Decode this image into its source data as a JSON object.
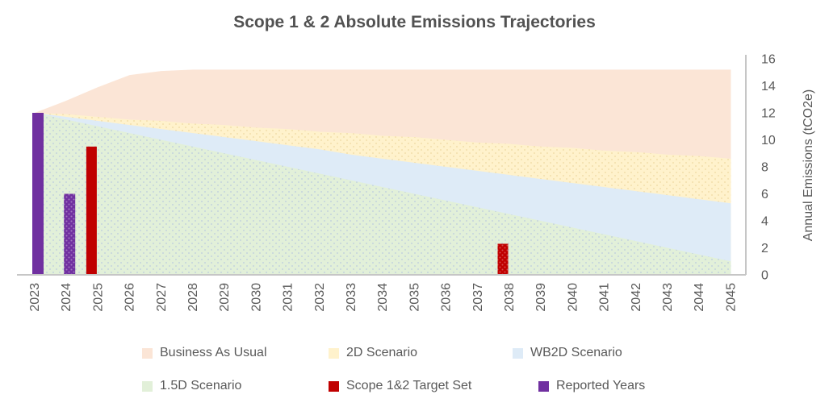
{
  "title": "Scope 1 & 2 Absolute Emissions Trajectories",
  "y_axis": {
    "title": "Annual Emissions (tCO2e)",
    "ticks": [
      0,
      2,
      4,
      6,
      8,
      10,
      12,
      14,
      16
    ],
    "min": 0,
    "max": 16
  },
  "x_axis": {
    "first_year": "2023",
    "last_year": "2045"
  },
  "legend": {
    "items": [
      {
        "label": "Business As Usual",
        "color": "#FBE5D6"
      },
      {
        "label": "2D Scenario",
        "color": "#FFF2CC"
      },
      {
        "label": "WB2D Scenario",
        "color": "#DEEBF7"
      },
      {
        "label": "1.5D Scenario",
        "color": "#E2F0D9"
      },
      {
        "label": "Scope 1&2 Target Set",
        "color": "#C00000"
      },
      {
        "label": "Reported Years",
        "color": "#7030A0"
      }
    ]
  },
  "colors": {
    "axis_line": "#C6C6C6",
    "tick_text": "#595959",
    "title_text": "#525252"
  },
  "chart_data": {
    "type": "area",
    "subtype": "overlapping areas with clustered columns",
    "title": "Scope 1 & 2 Absolute Emissions Trajectories",
    "xlabel": "",
    "ylabel": "Annual Emissions (tCO2e)",
    "ylim": [
      0,
      16
    ],
    "grid": false,
    "legend_position": "bottom",
    "categories": [
      2023,
      2024,
      2025,
      2026,
      2027,
      2028,
      2029,
      2030,
      2031,
      2032,
      2033,
      2034,
      2035,
      2036,
      2037,
      2038,
      2039,
      2040,
      2041,
      2042,
      2043,
      2044,
      2045
    ],
    "area_series": [
      {
        "name": "Business As Usual",
        "color": "#FBE5D6",
        "pattern": "none",
        "values": [
          12,
          12.9,
          13.9,
          14.8,
          15.1,
          15.2,
          15.2,
          15.2,
          15.2,
          15.2,
          15.2,
          15.2,
          15.2,
          15.2,
          15.2,
          15.2,
          15.2,
          15.2,
          15.2,
          15.2,
          15.2,
          15.2,
          15.2
        ]
      },
      {
        "name": "2D Scenario",
        "color": "#FFF2CC",
        "pattern": "dots",
        "values": [
          12,
          11.9,
          11.7,
          11.5,
          11.4,
          11.2,
          11.1,
          10.9,
          10.8,
          10.6,
          10.5,
          10.3,
          10.2,
          10.0,
          9.8,
          9.7,
          9.5,
          9.4,
          9.2,
          9.1,
          8.9,
          8.8,
          8.6
        ]
      },
      {
        "name": "WB2D Scenario",
        "color": "#DEEBF7",
        "pattern": "none",
        "values": [
          12,
          11.7,
          11.4,
          11.1,
          10.8,
          10.5,
          10.2,
          9.9,
          9.6,
          9.3,
          8.9,
          8.6,
          8.3,
          8.0,
          7.7,
          7.4,
          7.1,
          6.8,
          6.5,
          6.2,
          5.9,
          5.6,
          5.3
        ]
      },
      {
        "name": "1.5D Scenario",
        "color": "#E2F0D9",
        "pattern": "dots",
        "values": [
          12,
          11.5,
          11.0,
          10.5,
          10.0,
          9.5,
          9.0,
          8.5,
          8.0,
          7.5,
          7.0,
          6.5,
          6.0,
          5.5,
          5.0,
          4.5,
          4.0,
          3.5,
          3.0,
          2.5,
          2.0,
          1.5,
          1.0
        ]
      }
    ],
    "bar_series": [
      {
        "name": "Scope 1&2 Target Set",
        "color": "#C00000",
        "points": [
          {
            "year": 2025,
            "value": 9.5,
            "pattern": "none"
          },
          {
            "year": 2038,
            "value": 2.3,
            "pattern": "dots"
          }
        ]
      },
      {
        "name": "Reported Years",
        "color": "#7030A0",
        "points": [
          {
            "year": 2023,
            "value": 12.0,
            "pattern": "none"
          },
          {
            "year": 2024,
            "value": 6.0,
            "pattern": "dots"
          }
        ]
      }
    ]
  }
}
